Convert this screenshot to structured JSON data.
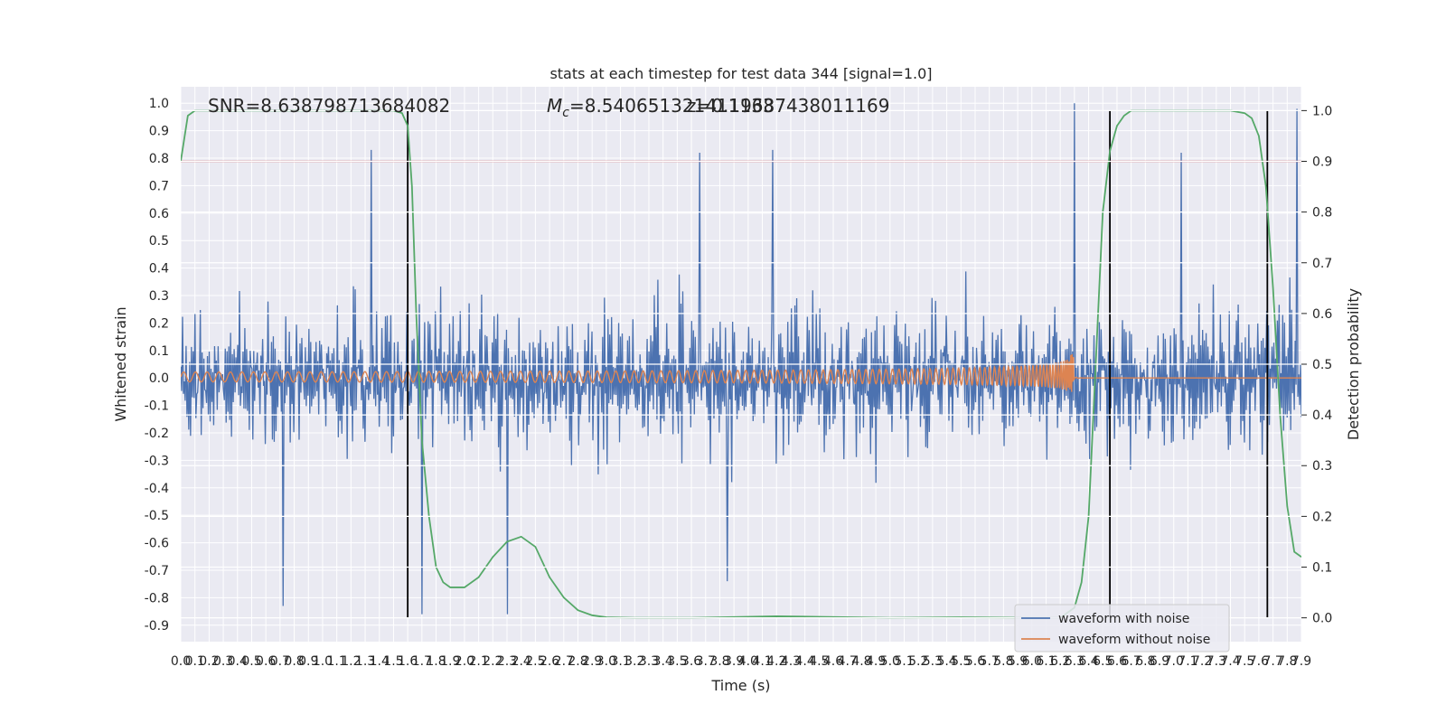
{
  "chart_data": {
    "type": "line",
    "title": "stats at each timestep for test data 344 [signal=1.0]",
    "xlabel": "Time (s)",
    "ylabel_left": "Whitened strain",
    "ylabel_right": "Detection probability",
    "xlim": [
      0.0,
      7.9
    ],
    "ylim_left": [
      -0.96,
      1.06
    ],
    "ylim_right": [
      -0.047,
      1.047
    ],
    "x_ticks": [
      0.0,
      0.1,
      0.2,
      0.3,
      0.4,
      0.5,
      0.6,
      0.7,
      0.8,
      0.9,
      1.0,
      1.1,
      1.2,
      1.3,
      1.4,
      1.5,
      1.6,
      1.7,
      1.8,
      1.9,
      2.0,
      2.1,
      2.2,
      2.3,
      2.4,
      2.5,
      2.6,
      2.7,
      2.8,
      2.9,
      3.0,
      3.1,
      3.2,
      3.3,
      3.4,
      3.5,
      3.6,
      3.7,
      3.8,
      3.9,
      4.0,
      4.1,
      4.2,
      4.3,
      4.4,
      4.5,
      4.6,
      4.7,
      4.8,
      4.9,
      5.0,
      5.1,
      5.2,
      5.3,
      5.4,
      5.5,
      5.6,
      5.7,
      5.8,
      5.9,
      6.0,
      6.1,
      6.2,
      6.3,
      6.4,
      6.5,
      6.6,
      6.7,
      6.8,
      6.9,
      7.0,
      7.1,
      7.2,
      7.3,
      7.4,
      7.5,
      7.6,
      7.7,
      7.8,
      7.9
    ],
    "y_ticks_left": [
      1.0,
      0.9,
      0.8,
      0.7,
      0.6,
      0.5,
      0.4,
      0.3,
      0.2,
      0.1,
      0.0,
      -0.1,
      -0.2,
      -0.3,
      -0.4,
      -0.5,
      -0.6,
      -0.7,
      -0.8,
      -0.9
    ],
    "y_ticks_right": [
      1.0,
      0.9,
      0.8,
      0.7,
      0.6,
      0.5,
      0.4,
      0.3,
      0.2,
      0.1,
      0.0
    ],
    "annotations": {
      "snr": "SNR=8.638798713684082",
      "mc_symbol": "M",
      "mc_sub": "c",
      "mc_value": "=8.540651321411133",
      "overlap": "z=0.19687438011169"
    },
    "threshold_right": 0.9,
    "vertical_lines_x": [
      1.6,
      6.55,
      7.66
    ],
    "legend": {
      "placement": "lower-right",
      "entries": [
        "waveform with noise",
        "waveform without noise"
      ]
    },
    "colors": {
      "noise": "#4c72b0",
      "clean": "#dd8452",
      "prob": "#55a868",
      "threshold": "#c44e52",
      "vline": "#000000",
      "plot_bg": "#eaeaf2",
      "grid": "#ffffff"
    },
    "probability_curve": {
      "x": [
        0.0,
        0.05,
        0.1,
        0.2,
        0.4,
        0.8,
        1.2,
        1.4,
        1.5,
        1.56,
        1.6,
        1.63,
        1.66,
        1.7,
        1.75,
        1.8,
        1.85,
        1.9,
        2.0,
        2.1,
        2.2,
        2.3,
        2.4,
        2.5,
        2.6,
        2.7,
        2.8,
        2.9,
        3.0,
        3.2,
        3.6,
        4.2,
        4.5,
        5.0,
        5.5,
        6.0,
        6.2,
        6.3,
        6.35,
        6.4,
        6.45,
        6.5,
        6.55,
        6.6,
        6.65,
        6.7,
        6.8,
        7.0,
        7.4,
        7.5,
        7.55,
        7.6,
        7.65,
        7.7,
        7.75,
        7.8,
        7.85,
        7.9
      ],
      "y": [
        0.9,
        0.99,
        1.0,
        1.0,
        1.0,
        1.0,
        1.0,
        1.0,
        1.0,
        0.995,
        0.97,
        0.85,
        0.6,
        0.35,
        0.2,
        0.1,
        0.07,
        0.06,
        0.06,
        0.08,
        0.12,
        0.15,
        0.16,
        0.14,
        0.08,
        0.04,
        0.015,
        0.005,
        0.001,
        0.0,
        0.0,
        0.003,
        0.002,
        0.0,
        0.001,
        0.0,
        0.0,
        0.02,
        0.07,
        0.2,
        0.5,
        0.8,
        0.92,
        0.97,
        0.99,
        1.0,
        1.0,
        1.0,
        1.0,
        0.995,
        0.985,
        0.95,
        0.85,
        0.65,
        0.4,
        0.22,
        0.13,
        0.12
      ]
    },
    "noise_series": {
      "generation": "seeded_noise",
      "seed": 344,
      "samples": 1260,
      "base_envelope": 0.5,
      "spike_peaks": [
        {
          "x": 1.34,
          "y": 0.83
        },
        {
          "x": 3.66,
          "y": 0.82
        },
        {
          "x": 4.17,
          "y": 0.83
        },
        {
          "x": 6.3,
          "y": 1.0
        },
        {
          "x": 7.05,
          "y": 0.82
        },
        {
          "x": 7.87,
          "y": 0.98
        },
        {
          "x": 2.3,
          "y": -0.86
        },
        {
          "x": 0.72,
          "y": -0.83
        },
        {
          "x": 1.7,
          "y": -0.86
        },
        {
          "x": 3.85,
          "y": -0.74
        }
      ]
    },
    "clean_series": {
      "generation": "chirp",
      "x_start": 0.0,
      "x_merge": 6.3,
      "x_end": 7.9,
      "start_amplitude": 0.018,
      "peak_max": 0.33,
      "peak_min": -0.22
    }
  }
}
